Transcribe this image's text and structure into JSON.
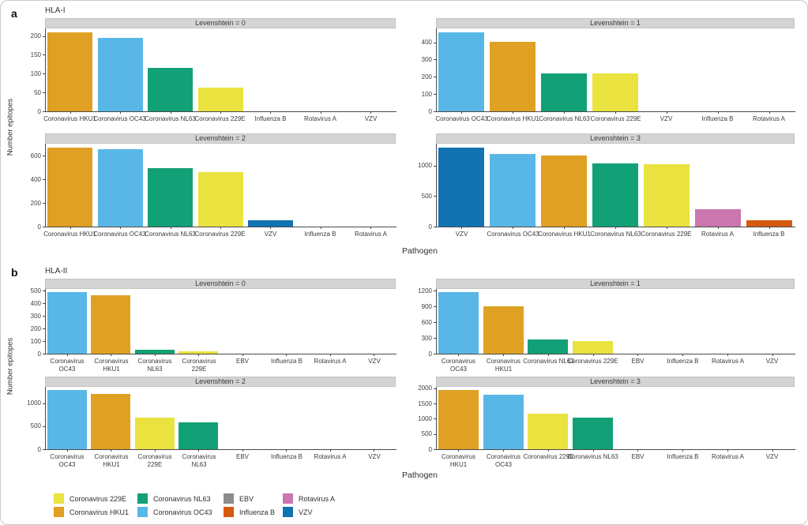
{
  "panel_a": {
    "letter": "a",
    "title": "HLA-I",
    "ylabel": "Number epitopes",
    "xlabel": "Pathogen"
  },
  "panel_b": {
    "letter": "b",
    "title": "HLA-II",
    "ylabel": "Number epitopes",
    "xlabel": "Pathogen"
  },
  "palette": {
    "Coronavirus 229E": "#EAE23F",
    "Coronavirus HKU1": "#E0A023",
    "Coronavirus NL63": "#12A076",
    "Coronavirus OC43": "#59B7E8",
    "EBV": "#8C8C8C",
    "Influenza B": "#D45A10",
    "Rotavirus A": "#CB76AF",
    "VZV": "#1272B2"
  },
  "chart_data": [
    {
      "type": "bar",
      "panel": "a",
      "facet_label": "Levenshtein = 0",
      "categories": [
        "Coronavirus HKU1",
        "Coronavirus OC43",
        "Coronavirus NL63",
        "Coronavirus 229E",
        "Influenza B",
        "Rotavirus A",
        "VZV"
      ],
      "values": [
        210,
        195,
        115,
        62,
        0,
        0,
        0
      ],
      "yticks": [
        0,
        50,
        100,
        150,
        200
      ],
      "ymax": 220,
      "grid": false
    },
    {
      "type": "bar",
      "panel": "a",
      "facet_label": "Levenshtein = 1",
      "categories": [
        "Coronavirus OC43",
        "Coronavirus HKU1",
        "Coronavirus NL63",
        "Coronavirus 229E",
        "VZV",
        "Influenza B",
        "Rotavirus A"
      ],
      "values": [
        455,
        400,
        220,
        220,
        0,
        0,
        0
      ],
      "yticks": [
        0,
        100,
        200,
        300,
        400
      ],
      "ymax": 480,
      "grid": false
    },
    {
      "type": "bar",
      "panel": "a",
      "facet_label": "Levenshtein = 2",
      "categories": [
        "Coronavirus HKU1",
        "Coronavirus OC43",
        "Coronavirus NL63",
        "Coronavirus 229E",
        "VZV",
        "Influenza B",
        "Rotavirus A"
      ],
      "values": [
        665,
        650,
        490,
        460,
        50,
        0,
        0
      ],
      "yticks": [
        0,
        200,
        400,
        600
      ],
      "ymax": 700,
      "grid": false
    },
    {
      "type": "bar",
      "panel": "a",
      "facet_label": "Levenshtein = 3",
      "categories": [
        "VZV",
        "Coronavirus OC43",
        "Coronavirus HKU1",
        "Coronavirus NL63",
        "Coronavirus 229E",
        "Rotavirus A",
        "Influenza B"
      ],
      "values": [
        1290,
        1190,
        1160,
        1030,
        1020,
        280,
        110
      ],
      "yticks": [
        0,
        500,
        1000
      ],
      "ymax": 1360,
      "grid": false
    },
    {
      "type": "bar",
      "panel": "b",
      "facet_label": "Levenshtein = 0",
      "categories": [
        "Coronavirus OC43",
        "Coronavirus HKU1",
        "Coronavirus NL63",
        "Coronavirus 229E",
        "EBV",
        "Influenza B",
        "Rotavirus A",
        "VZV"
      ],
      "values": [
        490,
        465,
        30,
        18,
        0,
        0,
        0,
        0
      ],
      "yticks": [
        0,
        100,
        200,
        300,
        400,
        500
      ],
      "ymax": 515,
      "grid": false
    },
    {
      "type": "bar",
      "panel": "b",
      "facet_label": "Levenshtein = 1",
      "categories": [
        "Coronavirus OC43",
        "Coronavirus HKU1",
        "Coronavirus NL63",
        "Coronavirus 229E",
        "EBV",
        "Influenza B",
        "Rotavirus A",
        "VZV"
      ],
      "values": [
        1170,
        905,
        275,
        245,
        0,
        0,
        0,
        0
      ],
      "yticks": [
        0,
        300,
        600,
        900,
        1200
      ],
      "ymax": 1230,
      "grid": false
    },
    {
      "type": "bar",
      "panel": "b",
      "facet_label": "Levenshtein = 2",
      "categories": [
        "Coronavirus OC43",
        "Coronavirus HKU1",
        "Coronavirus 229E",
        "Coronavirus NL63",
        "EBV",
        "Influenza B",
        "Rotavirus A",
        "VZV"
      ],
      "values": [
        1290,
        1200,
        680,
        580,
        0,
        0,
        0,
        0
      ],
      "yticks": [
        0,
        500,
        1000
      ],
      "ymax": 1360,
      "grid": false
    },
    {
      "type": "bar",
      "panel": "b",
      "facet_label": "Levenshtein = 3",
      "categories": [
        "Coronavirus HKU1",
        "Coronavirus OC43",
        "Coronavirus 229E",
        "Coronavirus NL63",
        "EBV",
        "Influenza B",
        "Rotavirus A",
        "VZV"
      ],
      "values": [
        1950,
        1780,
        1180,
        1050,
        0,
        0,
        0,
        0
      ],
      "yticks": [
        0,
        500,
        1000,
        1500,
        2000
      ],
      "ymax": 2050,
      "grid": false
    }
  ],
  "legend": {
    "columns": [
      [
        {
          "label": "Coronavirus 229E",
          "color": "#EAE23F"
        },
        {
          "label": "Coronavirus HKU1",
          "color": "#E0A023"
        }
      ],
      [
        {
          "label": "Coronavirus NL63",
          "color": "#12A076"
        },
        {
          "label": "Coronavirus OC43",
          "color": "#59B7E8"
        }
      ],
      [
        {
          "label": "EBV",
          "color": "#8C8C8C"
        },
        {
          "label": "Influenza B",
          "color": "#D45A10"
        }
      ],
      [
        {
          "label": "Rotavirus A",
          "color": "#CB76AF"
        },
        {
          "label": "VZV",
          "color": "#1272B2"
        }
      ]
    ]
  }
}
